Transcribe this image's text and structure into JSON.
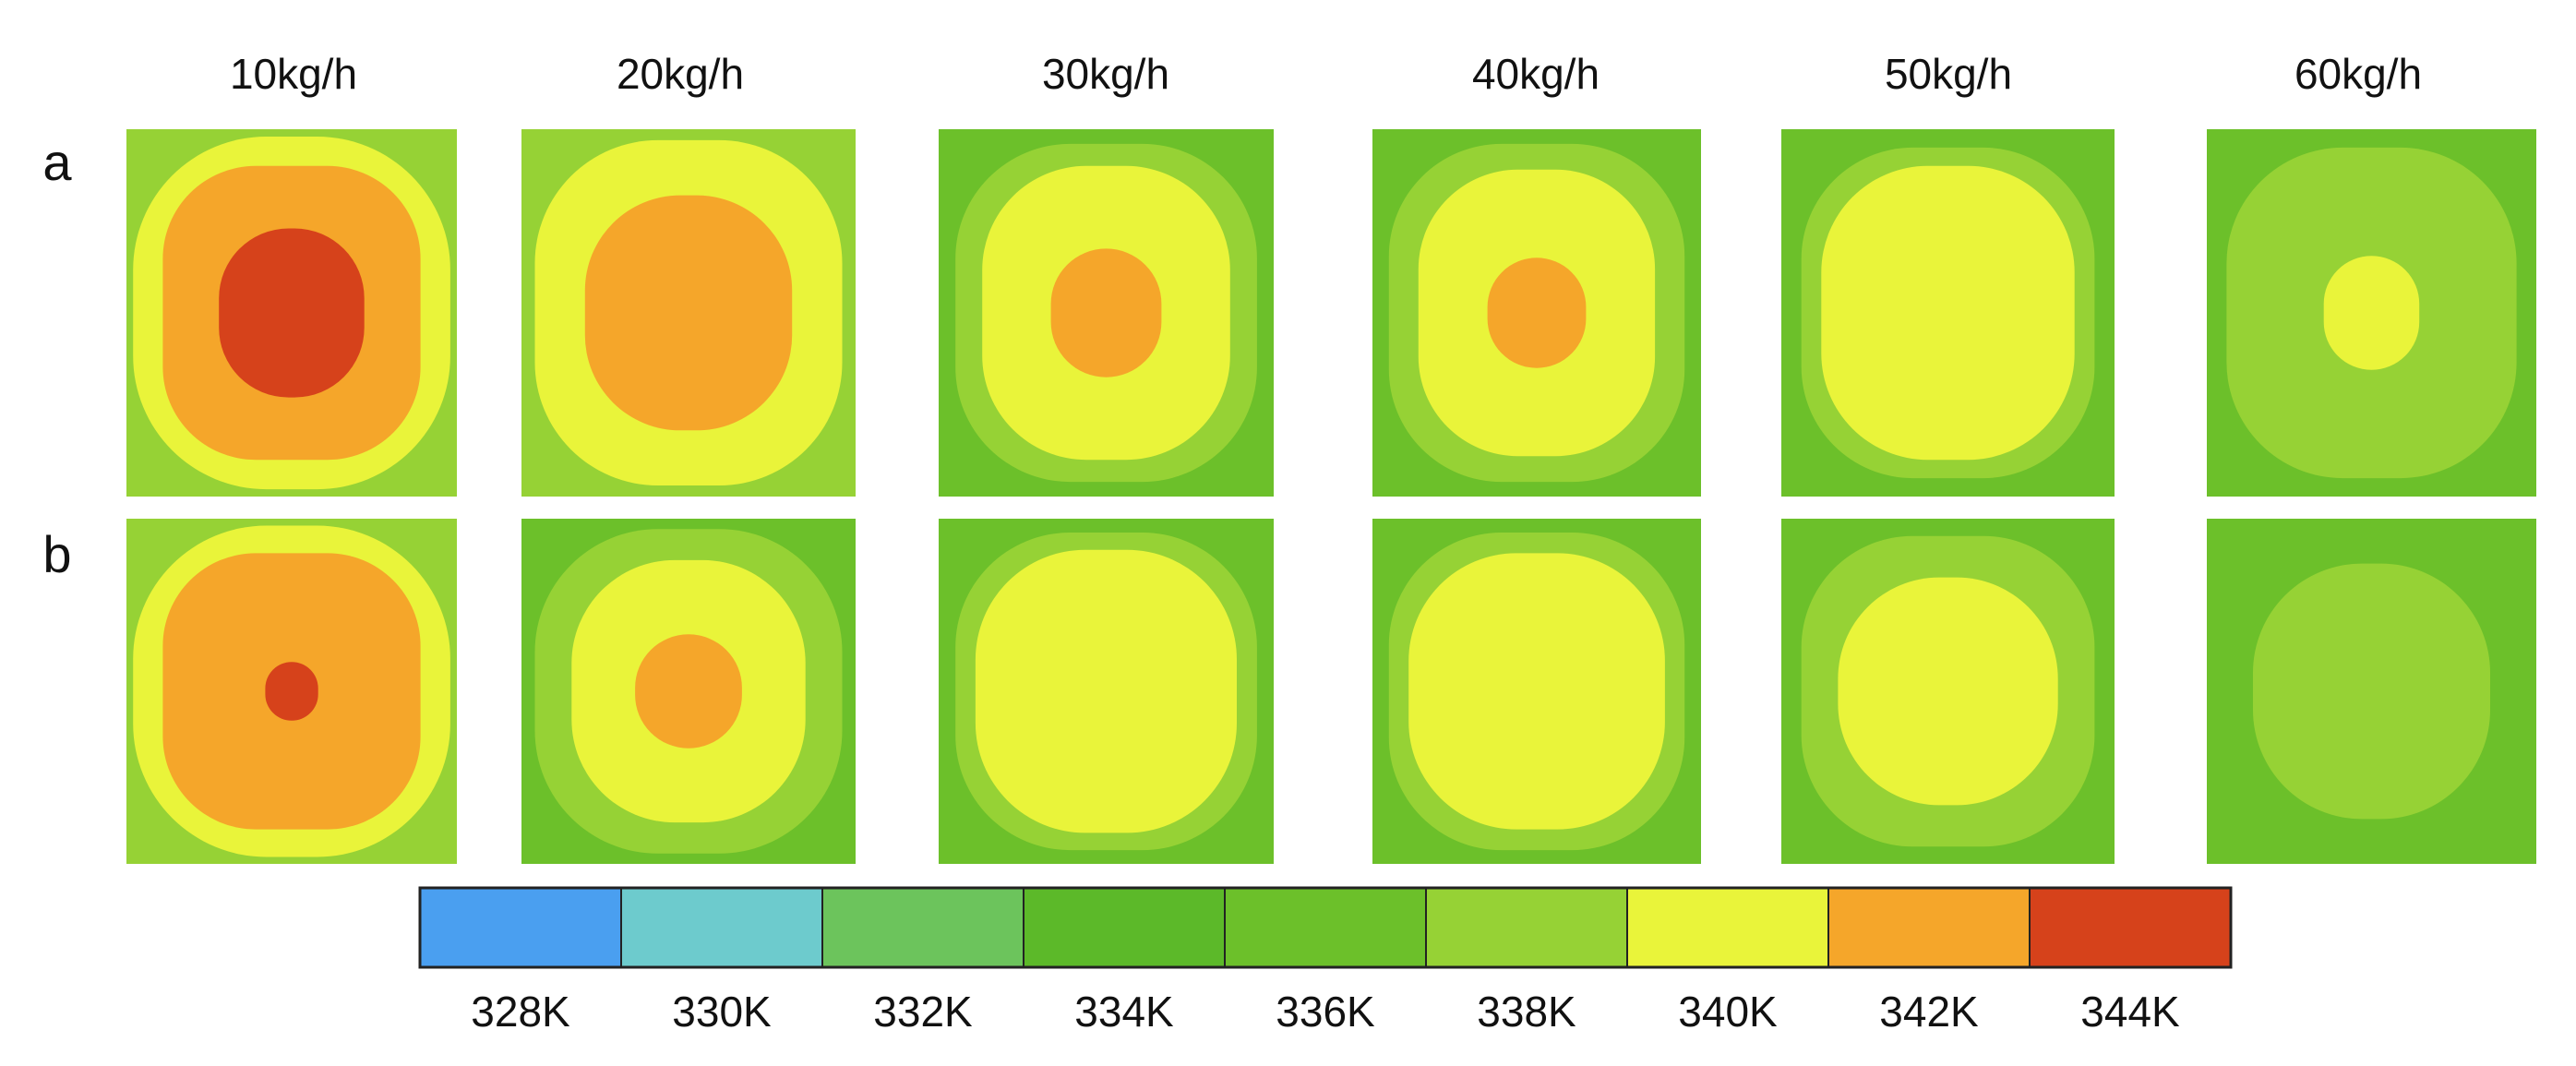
{
  "chart_data": {
    "type": "heatmap",
    "columns": [
      "10kg/h",
      "20kg/h",
      "30kg/h",
      "40kg/h",
      "50kg/h",
      "60kg/h"
    ],
    "rows": [
      {
        "label": "a",
        "panels": [
          {
            "outer_K": 338,
            "levels_K": [
              338,
              340,
              342,
              344
            ]
          },
          {
            "outer_K": 338,
            "levels_K": [
              338,
              340,
              342
            ]
          },
          {
            "outer_K": 336,
            "levels_K": [
              336,
              338,
              340,
              342
            ]
          },
          {
            "outer_K": 336,
            "levels_K": [
              336,
              338,
              340,
              342
            ]
          },
          {
            "outer_K": 336,
            "levels_K": [
              336,
              338,
              340
            ]
          },
          {
            "outer_K": 336,
            "levels_K": [
              336,
              338,
              340
            ]
          }
        ]
      },
      {
        "label": "b",
        "panels": [
          {
            "outer_K": 338,
            "levels_K": [
              338,
              340,
              342,
              344
            ]
          },
          {
            "outer_K": 336,
            "levels_K": [
              336,
              338,
              340,
              342
            ]
          },
          {
            "outer_K": 336,
            "levels_K": [
              336,
              338,
              340
            ]
          },
          {
            "outer_K": 336,
            "levels_K": [
              336,
              338,
              340
            ]
          },
          {
            "outer_K": 336,
            "levels_K": [
              336,
              338,
              340
            ]
          },
          {
            "outer_K": 336,
            "levels_K": [
              336,
              338
            ]
          }
        ]
      }
    ],
    "colorbar": {
      "labels": [
        "328K",
        "330K",
        "332K",
        "334K",
        "336K",
        "338K",
        "340K",
        "342K",
        "344K"
      ],
      "values_K": [
        328,
        330,
        332,
        334,
        336,
        338,
        340,
        342,
        344
      ],
      "colors": [
        "#4a9ff0",
        "#6dcbcd",
        "#6cc45c",
        "#5cb929",
        "#6cc02a",
        "#96d235",
        "#e9f43a",
        "#f5a62a",
        "#d6421b"
      ]
    }
  }
}
